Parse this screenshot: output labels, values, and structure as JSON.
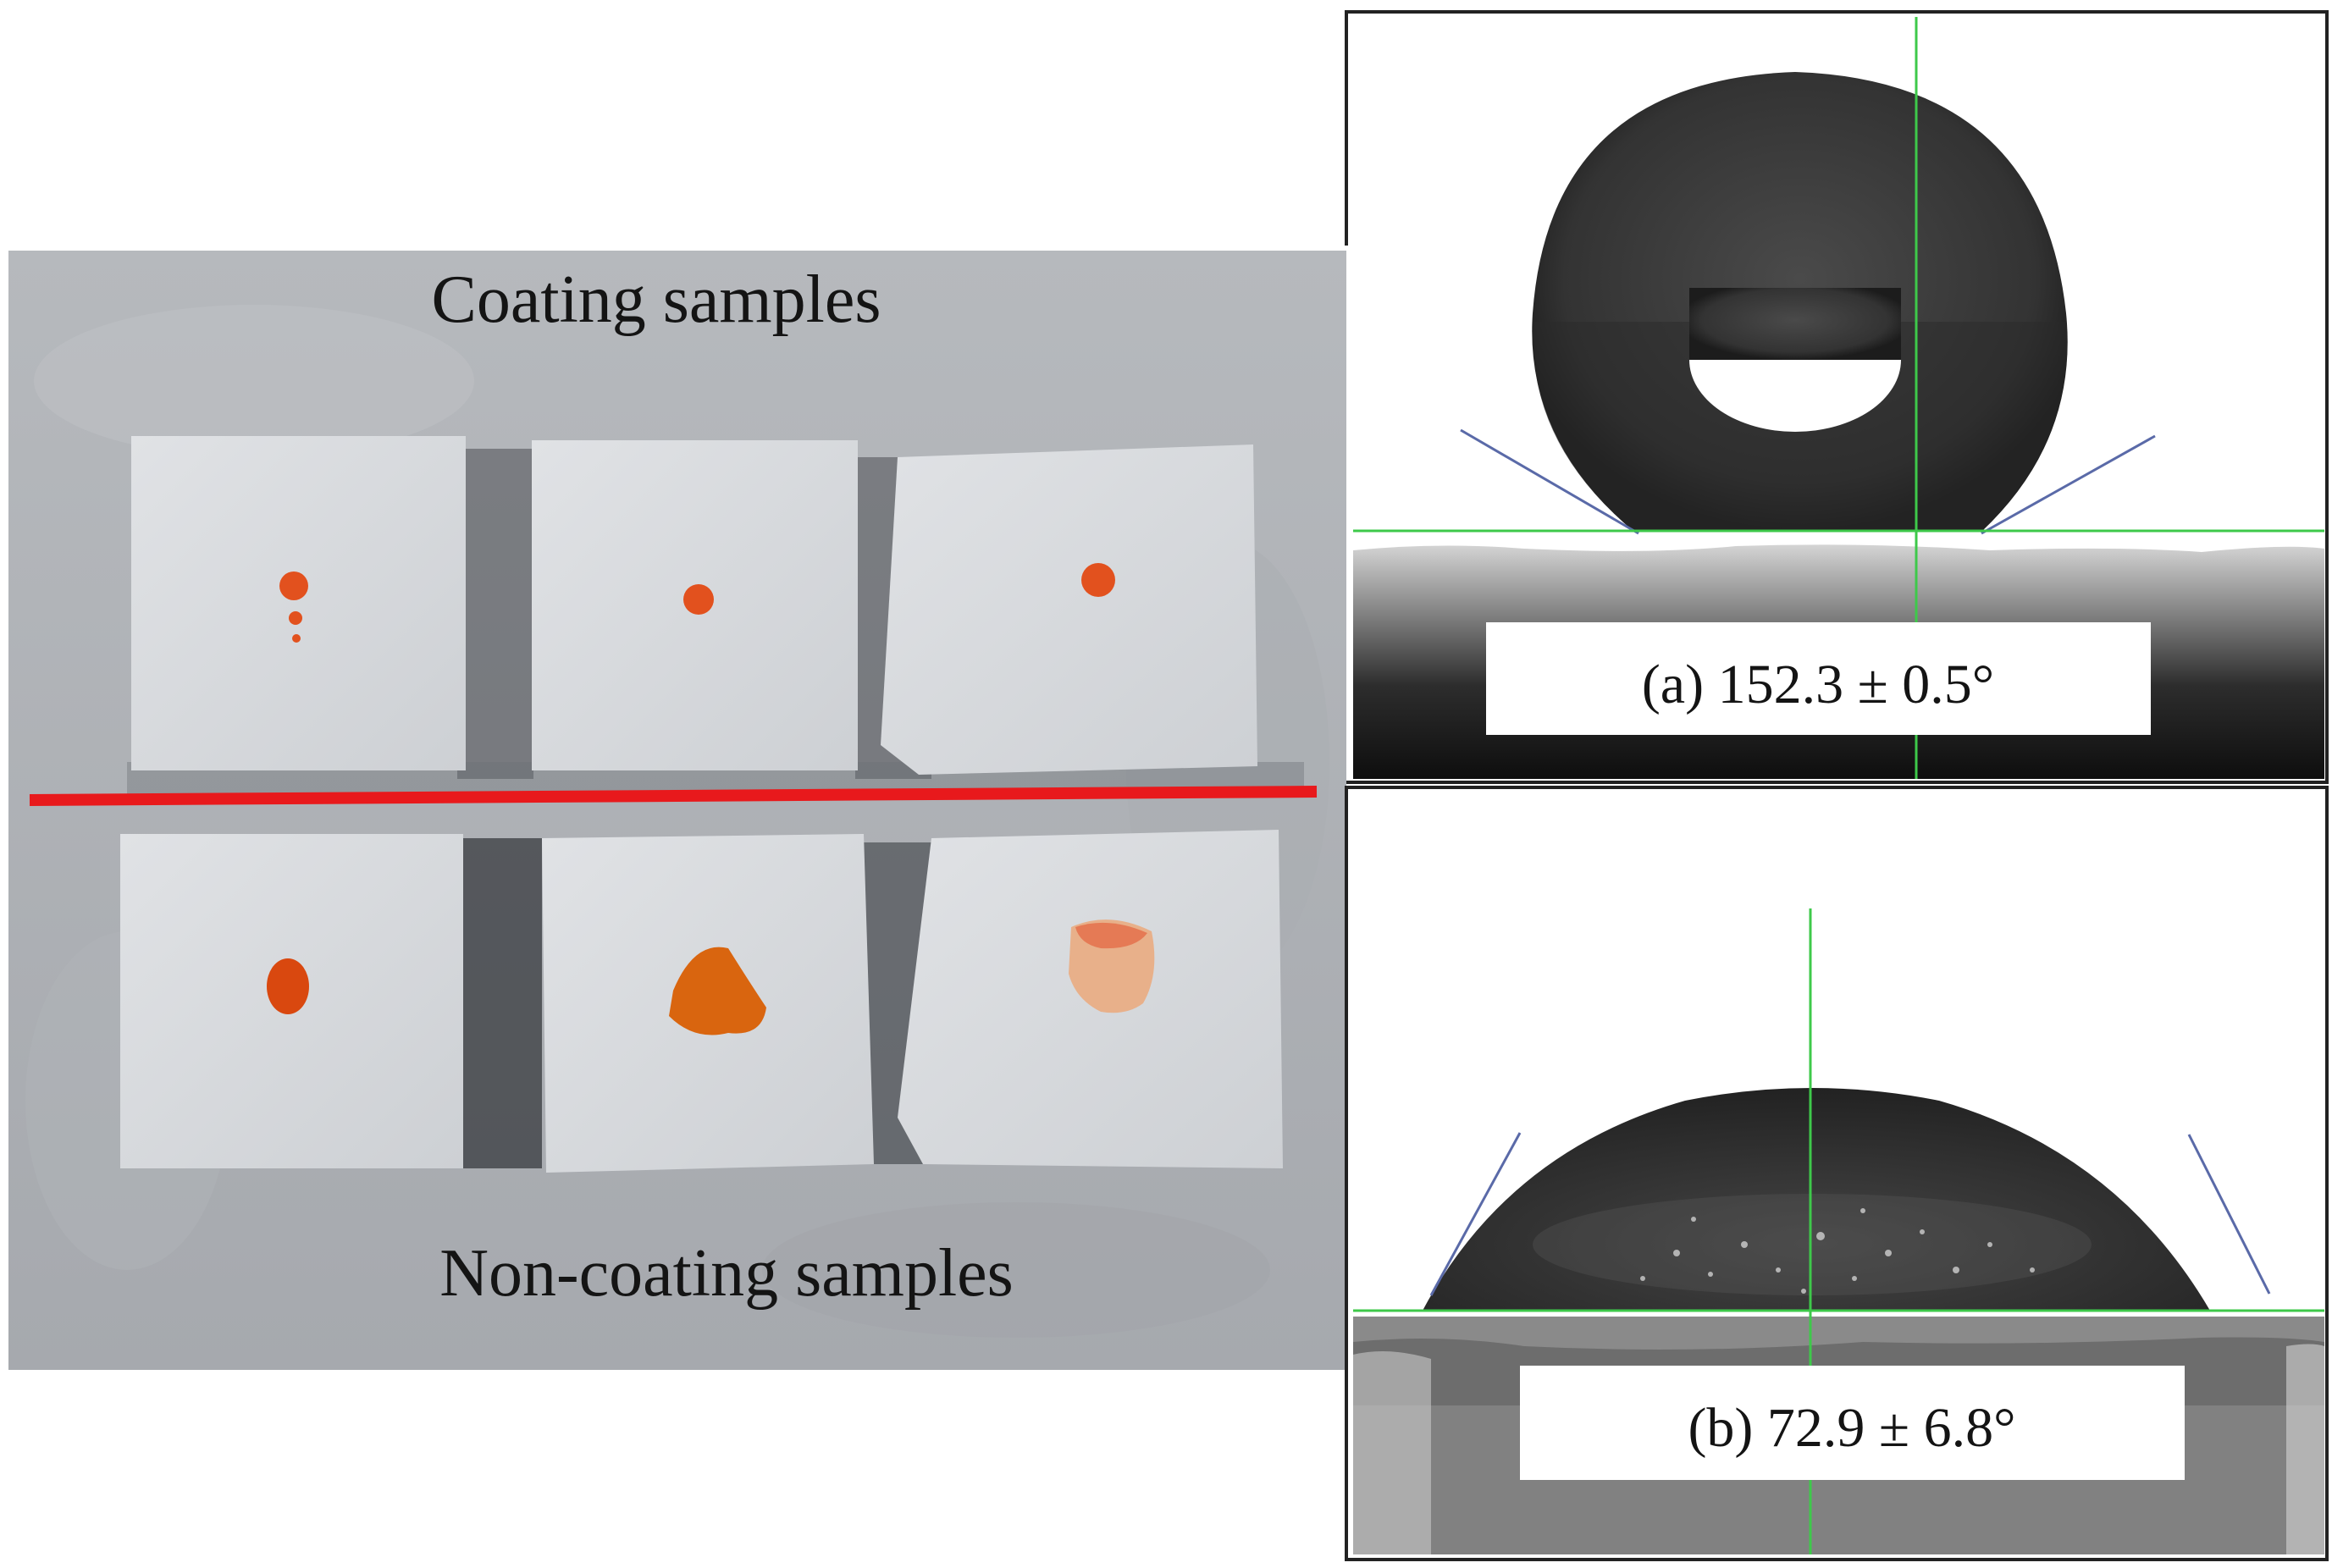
{
  "left_panel": {
    "top_label": "Coating samples",
    "bottom_label": "Non-coating samples",
    "divider_color": "#e8191c",
    "droplet_color": "#e2511e"
  },
  "panel_a": {
    "caption": "(a) 152.3 ± 0.5°",
    "contact_angle_deg": 152.3,
    "uncertainty_deg": 0.5
  },
  "panel_b": {
    "caption": "(b) 72.9 ± 6.8°",
    "contact_angle_deg": 72.9,
    "uncertainty_deg": 6.8
  },
  "colors": {
    "crosshair": "#3ec94a",
    "tangent": "#5a6aa8"
  }
}
